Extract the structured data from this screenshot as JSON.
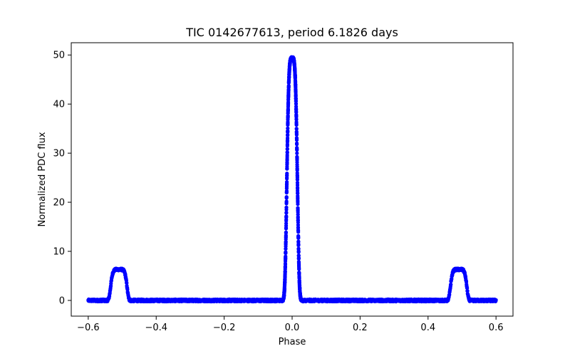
{
  "chart_data": {
    "type": "scatter",
    "title": "TIC 0142677613, period 6.1826 days",
    "xlabel": "Phase",
    "ylabel": "Normalized PDC flux",
    "xlim": [
      -0.65,
      0.65
    ],
    "ylim": [
      -3.2,
      52.5
    ],
    "xticks": [
      -0.6,
      -0.4,
      -0.2,
      0.0,
      0.2,
      0.4,
      0.6
    ],
    "xtick_labels": [
      "−0.6",
      "−0.4",
      "−0.2",
      "0.0",
      "0.2",
      "0.4",
      "0.6"
    ],
    "yticks": [
      0,
      10,
      20,
      30,
      40,
      50
    ],
    "ytick_labels": [
      "0",
      "10",
      "20",
      "30",
      "40",
      "50"
    ],
    "grid": false,
    "series": [
      {
        "name": "flux",
        "color": "#0000ff",
        "marker": "circle",
        "x_range": [
          -0.6,
          0.6
        ],
        "baseline": 0.0,
        "features": [
          {
            "type": "primary_peak",
            "center": 0.0,
            "half_width": 0.017,
            "peak": 49.3
          },
          {
            "type": "secondary_bump",
            "center": -0.51,
            "half_width": 0.025,
            "peak": 6.3
          },
          {
            "type": "secondary_bump",
            "center": 0.49,
            "half_width": 0.025,
            "peak": 6.3
          }
        ]
      }
    ]
  }
}
